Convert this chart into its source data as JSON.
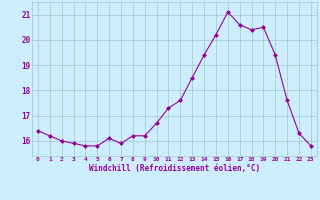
{
  "hours": [
    0,
    1,
    2,
    3,
    4,
    5,
    6,
    7,
    8,
    9,
    10,
    11,
    12,
    13,
    14,
    15,
    16,
    17,
    18,
    19,
    20,
    21,
    22,
    23
  ],
  "values": [
    16.4,
    16.2,
    16.0,
    15.9,
    15.8,
    15.8,
    16.1,
    15.9,
    16.2,
    16.2,
    16.7,
    17.3,
    17.6,
    18.5,
    19.4,
    20.2,
    21.1,
    20.6,
    20.4,
    20.5,
    19.4,
    17.6,
    16.3,
    15.8
  ],
  "line_color": "#990099",
  "marker": "D",
  "marker_size": 2.0,
  "bg_color": "#cceeff",
  "grid_color": "#aacccc",
  "xlabel": "Windchill (Refroidissement éolien,°C)",
  "xlabel_color": "#990099",
  "tick_color": "#990099",
  "ylim": [
    15.4,
    21.5
  ],
  "yticks": [
    16,
    17,
    18,
    19,
    20,
    21
  ],
  "xlim": [
    -0.5,
    23.5
  ],
  "xtick_labels": [
    "0",
    "1",
    "2",
    "3",
    "4",
    "5",
    "6",
    "7",
    "8",
    "9",
    "10",
    "11",
    "12",
    "13",
    "14",
    "15",
    "16",
    "17",
    "18",
    "19",
    "20",
    "21",
    "22",
    "23"
  ]
}
